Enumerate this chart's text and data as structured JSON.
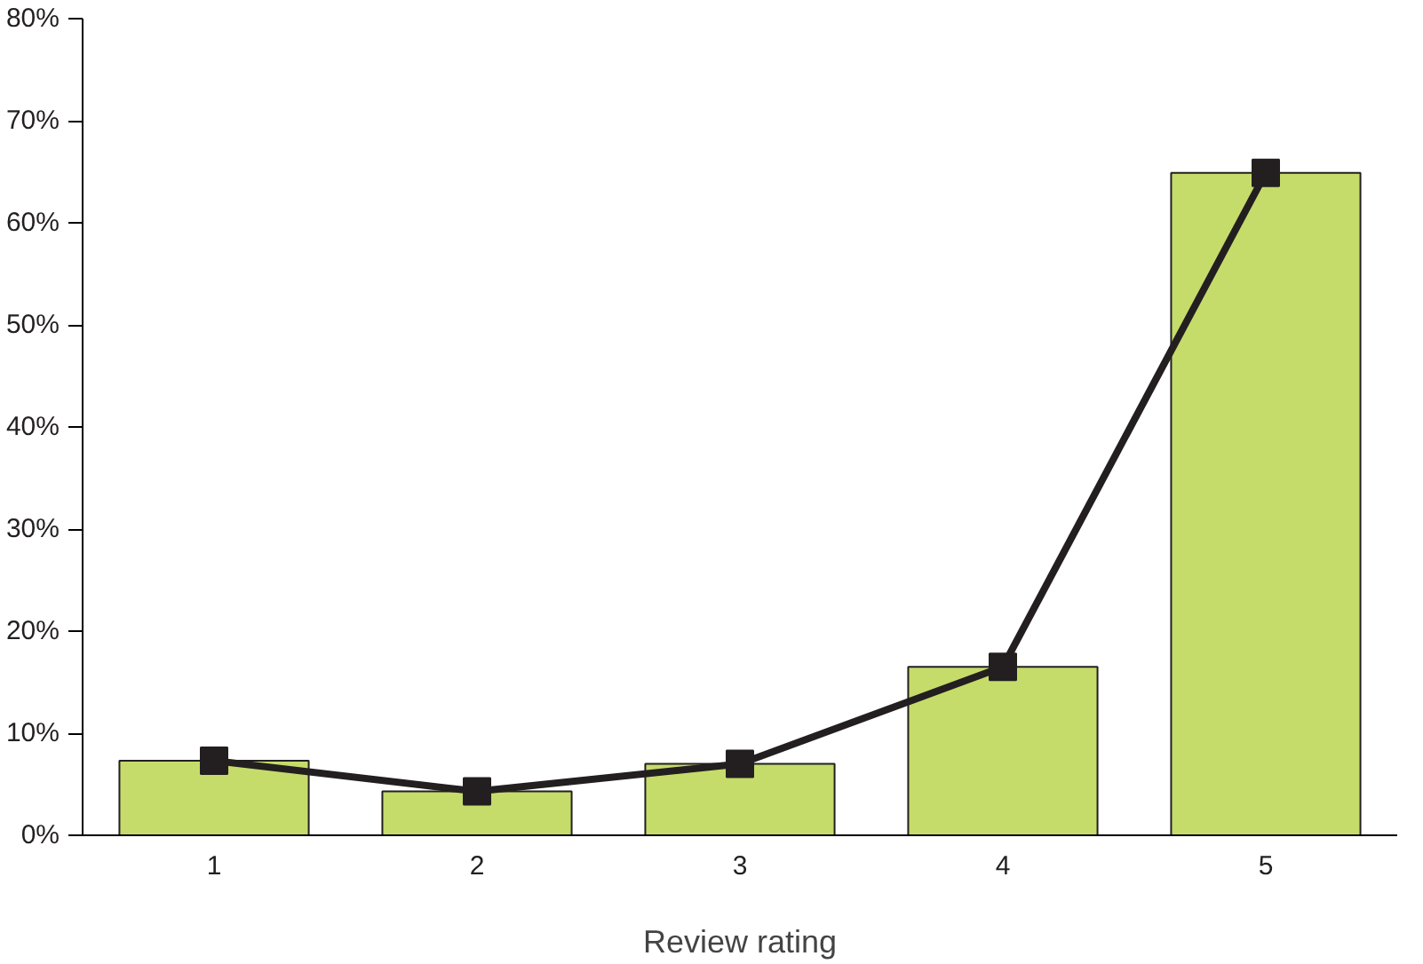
{
  "chart_data": {
    "type": "bar",
    "xlabel": "Review rating",
    "categories": [
      "1",
      "2",
      "3",
      "4",
      "5"
    ],
    "series": [
      {
        "color": "#c5dc6a",
        "values": [
          7.3,
          4.3,
          7.0,
          16.5,
          64.9
        ]
      },
      {
        "type": "line",
        "color": "#231f20",
        "values": [
          7.3,
          4.3,
          7.0,
          16.5,
          64.9
        ],
        "marker": "square"
      }
    ],
    "ylim": [
      0,
      80
    ],
    "yticks": [
      {
        "value": 0,
        "label": "0%"
      },
      {
        "value": 10,
        "label": "10%"
      },
      {
        "value": 20,
        "label": "20%"
      },
      {
        "value": 30,
        "label": "30%"
      },
      {
        "value": 40,
        "label": "40%"
      },
      {
        "value": 50,
        "label": "50%"
      },
      {
        "value": 60,
        "label": "60%"
      },
      {
        "value": 70,
        "label": "70%"
      },
      {
        "value": 80,
        "label": "80%"
      }
    ],
    "grid": false
  }
}
